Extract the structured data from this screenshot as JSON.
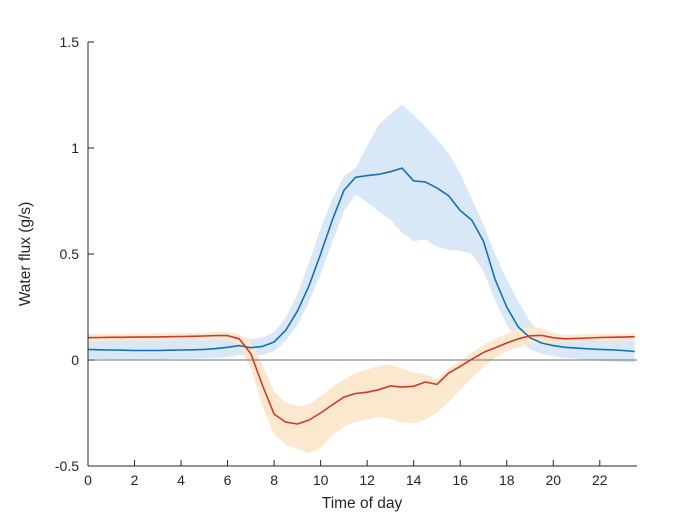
{
  "figure": {
    "background": "#ffffff"
  },
  "chart_data": {
    "type": "line",
    "title": "",
    "xlabel": "Time of day",
    "ylabel": "Water flux (g/s)",
    "xlim": [
      0,
      23.6
    ],
    "ylim": [
      -0.5,
      1.5
    ],
    "grid": false,
    "legend": "none",
    "axis_color": "#262626",
    "tick_label_color": "#262626",
    "zero_line": {
      "y": 0,
      "color": "#737373"
    },
    "x_ticks": {
      "values": [
        0,
        2,
        4,
        6,
        8,
        10,
        12,
        14,
        16,
        18,
        20,
        22
      ],
      "labels": [
        "0",
        "2",
        "4",
        "6",
        "8",
        "10",
        "12",
        "14",
        "16",
        "18",
        "20",
        "22"
      ]
    },
    "y_ticks": {
      "values": [
        -0.5,
        0,
        0.5,
        1,
        1.5
      ],
      "labels": [
        "-0.5",
        "0",
        "0.5",
        "1",
        "1.5"
      ]
    },
    "x": [
      0,
      0.5,
      1,
      1.5,
      2,
      2.5,
      3,
      3.5,
      4,
      4.5,
      5,
      5.5,
      6,
      6.5,
      7,
      7.5,
      8,
      8.5,
      9,
      9.5,
      10,
      10.5,
      11,
      11.5,
      12,
      12.5,
      13,
      13.5,
      14,
      14.5,
      15,
      15.5,
      16,
      16.5,
      17,
      17.5,
      18,
      18.5,
      19,
      19.5,
      20,
      20.5,
      21,
      21.5,
      22,
      22.5,
      23,
      23.5
    ],
    "series": [
      {
        "name": "blue-flux",
        "line_color": "#1471b8",
        "band_color": "#d9e8f6",
        "mean": [
          0.05,
          0.048,
          0.047,
          0.046,
          0.045,
          0.045,
          0.045,
          0.046,
          0.047,
          0.048,
          0.05,
          0.054,
          0.06,
          0.068,
          0.058,
          0.064,
          0.085,
          0.14,
          0.23,
          0.35,
          0.5,
          0.66,
          0.8,
          0.862,
          0.87,
          0.876,
          0.888,
          0.905,
          0.845,
          0.84,
          0.812,
          0.775,
          0.705,
          0.66,
          0.56,
          0.38,
          0.25,
          0.155,
          0.105,
          0.08,
          0.068,
          0.06,
          0.056,
          0.053,
          0.05,
          0.048,
          0.045,
          0.04
        ],
        "upper": [
          0.098,
          0.096,
          0.095,
          0.094,
          0.094,
          0.095,
          0.096,
          0.097,
          0.098,
          0.099,
          0.1,
          0.102,
          0.105,
          0.112,
          0.1,
          0.106,
          0.132,
          0.2,
          0.31,
          0.46,
          0.62,
          0.76,
          0.868,
          0.905,
          1.01,
          1.11,
          1.16,
          1.205,
          1.155,
          1.1,
          1.04,
          0.975,
          0.88,
          0.76,
          0.64,
          0.5,
          0.38,
          0.275,
          0.18,
          0.125,
          0.105,
          0.098,
          0.096,
          0.094,
          0.093,
          0.092,
          0.09,
          0.089
        ],
        "lower": [
          0.006,
          0.005,
          0.004,
          0.004,
          0.003,
          0.004,
          0.004,
          0.005,
          0.005,
          0.006,
          0.007,
          0.009,
          0.014,
          0.024,
          0.016,
          0.024,
          0.042,
          0.09,
          0.165,
          0.275,
          0.405,
          0.555,
          0.7,
          0.78,
          0.745,
          0.7,
          0.662,
          0.6,
          0.56,
          0.57,
          0.535,
          0.52,
          0.515,
          0.5,
          0.42,
          0.28,
          0.165,
          0.092,
          0.05,
          0.028,
          0.018,
          0.01,
          0.005,
          0,
          -0.004,
          -0.007,
          -0.01,
          -0.013
        ]
      },
      {
        "name": "red-flux",
        "line_color": "#cb3b2d",
        "band_color": "#fbe8cf",
        "mean": [
          0.105,
          0.106,
          0.107,
          0.107,
          0.108,
          0.108,
          0.109,
          0.11,
          0.111,
          0.112,
          0.113,
          0.115,
          0.115,
          0.1,
          0.03,
          -0.12,
          -0.255,
          -0.293,
          -0.302,
          -0.283,
          -0.25,
          -0.212,
          -0.175,
          -0.158,
          -0.152,
          -0.14,
          -0.122,
          -0.128,
          -0.124,
          -0.104,
          -0.115,
          -0.062,
          -0.03,
          0.004,
          0.036,
          0.058,
          0.08,
          0.1,
          0.114,
          0.116,
          0.105,
          0.1,
          0.102,
          0.104,
          0.106,
          0.107,
          0.108,
          0.11
        ],
        "upper": [
          0.122,
          0.123,
          0.124,
          0.124,
          0.125,
          0.125,
          0.126,
          0.127,
          0.127,
          0.128,
          0.129,
          0.131,
          0.132,
          0.122,
          0.085,
          -0.02,
          -0.15,
          -0.2,
          -0.218,
          -0.208,
          -0.172,
          -0.128,
          -0.09,
          -0.06,
          -0.045,
          -0.028,
          -0.02,
          -0.04,
          -0.058,
          -0.066,
          -0.09,
          -0.04,
          -0.005,
          0.035,
          0.072,
          0.1,
          0.124,
          0.145,
          0.158,
          0.15,
          0.128,
          0.118,
          0.12,
          0.121,
          0.122,
          0.123,
          0.124,
          0.125
        ],
        "lower": [
          0.088,
          0.089,
          0.09,
          0.09,
          0.091,
          0.091,
          0.092,
          0.092,
          0.093,
          0.094,
          0.095,
          0.098,
          0.097,
          0.07,
          -0.04,
          -0.22,
          -0.35,
          -0.4,
          -0.42,
          -0.44,
          -0.415,
          -0.355,
          -0.315,
          -0.292,
          -0.282,
          -0.268,
          -0.278,
          -0.295,
          -0.298,
          -0.282,
          -0.248,
          -0.2,
          -0.14,
          -0.085,
          -0.035,
          0.012,
          0.04,
          0.06,
          0.075,
          0.08,
          0.08,
          0.084,
          0.086,
          0.088,
          0.089,
          0.09,
          0.09,
          0.092
        ]
      }
    ]
  }
}
